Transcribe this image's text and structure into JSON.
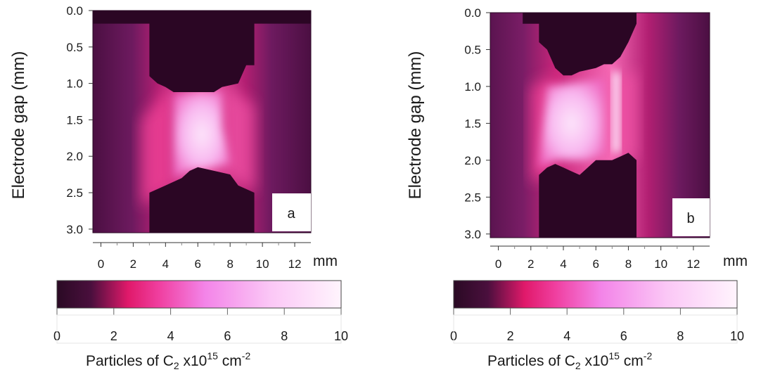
{
  "chart_data": [
    {
      "type": "heatmap",
      "panel_label": "a",
      "ylabel": "Electrode gap (mm)",
      "x_unit": "mm",
      "x_ticks": [
        0,
        2,
        4,
        6,
        8,
        10,
        12
      ],
      "y_ticks": [
        "0.0",
        "0.5",
        "1.0",
        "1.5",
        "2.0",
        "2.5",
        "3.0"
      ],
      "xlim": [
        -0.5,
        13.0
      ],
      "ylim": [
        0.0,
        3.05
      ],
      "colorbar": {
        "title": "Particles of C2 x10^15 cm^-2",
        "title_parts": {
          "main": "Particles of C",
          "sub": "2",
          "mid": " x10",
          "sup1": "15",
          "unit": " cm",
          "sup2": "-2"
        },
        "ticks": [
          0,
          2,
          4,
          6,
          8,
          10
        ],
        "range": [
          0,
          10
        ]
      },
      "regions": {
        "top_electrode": [
          [
            -0.5,
            0.0
          ],
          [
            13.0,
            0.0
          ],
          [
            13.0,
            0.18
          ],
          [
            9.5,
            0.18
          ],
          [
            9.5,
            0.75
          ],
          [
            9.0,
            0.75
          ],
          [
            8.5,
            1.0
          ],
          [
            7.5,
            1.05
          ],
          [
            7.0,
            1.12
          ],
          [
            4.5,
            1.12
          ],
          [
            4.0,
            1.05
          ],
          [
            3.5,
            1.0
          ],
          [
            3.0,
            0.9
          ],
          [
            3.0,
            0.18
          ],
          [
            -0.5,
            0.18
          ]
        ],
        "bottom_electrode": [
          [
            3.0,
            3.05
          ],
          [
            3.0,
            2.5
          ],
          [
            4.0,
            2.4
          ],
          [
            5.0,
            2.3
          ],
          [
            5.5,
            2.2
          ],
          [
            6.0,
            2.15
          ],
          [
            7.0,
            2.2
          ],
          [
            8.0,
            2.25
          ],
          [
            8.5,
            2.4
          ],
          [
            9.5,
            2.5
          ],
          [
            9.5,
            3.05
          ]
        ],
        "plasma_core": [
          [
            4.5,
            1.15
          ],
          [
            7.5,
            1.1
          ],
          [
            7.5,
            1.6
          ],
          [
            8.0,
            2.1
          ],
          [
            7.0,
            2.15
          ],
          [
            5.5,
            2.2
          ],
          [
            4.5,
            2.3
          ],
          [
            4.5,
            1.7
          ]
        ],
        "left_glow": [
          [
            2.5,
            1.5
          ],
          [
            4.5,
            1.0
          ],
          [
            4.5,
            2.4
          ],
          [
            2.5,
            2.7
          ]
        ],
        "right_glow": [
          [
            7.5,
            1.0
          ],
          [
            9.5,
            1.3
          ],
          [
            9.5,
            2.5
          ],
          [
            7.5,
            2.2
          ]
        ]
      }
    },
    {
      "type": "heatmap",
      "panel_label": "b",
      "ylabel": "Electrode gap (mm)",
      "x_unit": "mm",
      "x_ticks": [
        0,
        2,
        4,
        6,
        8,
        10,
        12
      ],
      "y_ticks": [
        "0.0",
        "0.5",
        "1.0",
        "1.5",
        "2.0",
        "2.5",
        "3.0"
      ],
      "xlim": [
        -0.5,
        13.0
      ],
      "ylim": [
        0.0,
        3.05
      ],
      "colorbar": {
        "title": "Particles of C2 x10^15 cm^-2",
        "title_parts": {
          "main": "Particles of C",
          "sub": "2",
          "mid": " x10",
          "sup1": "15",
          "unit": " cm",
          "sup2": "-2"
        },
        "ticks": [
          0,
          2,
          4,
          6,
          8,
          10
        ],
        "range": [
          0,
          10
        ]
      },
      "regions": {
        "top_electrode": [
          [
            1.5,
            0.0
          ],
          [
            8.5,
            0.0
          ],
          [
            8.5,
            0.15
          ],
          [
            8.0,
            0.4
          ],
          [
            7.5,
            0.6
          ],
          [
            7.0,
            0.7
          ],
          [
            6.5,
            0.7
          ],
          [
            6.0,
            0.75
          ],
          [
            5.0,
            0.8
          ],
          [
            4.5,
            0.85
          ],
          [
            4.0,
            0.85
          ],
          [
            3.5,
            0.75
          ],
          [
            3.0,
            0.5
          ],
          [
            2.5,
            0.4
          ],
          [
            2.5,
            0.15
          ],
          [
            1.5,
            0.15
          ]
        ],
        "bottom_electrode": [
          [
            2.5,
            3.05
          ],
          [
            2.5,
            2.2
          ],
          [
            3.0,
            2.1
          ],
          [
            3.5,
            2.05
          ],
          [
            4.0,
            2.1
          ],
          [
            4.5,
            2.15
          ],
          [
            5.0,
            2.2
          ],
          [
            5.5,
            2.1
          ],
          [
            6.0,
            2.0
          ],
          [
            7.0,
            2.0
          ],
          [
            7.5,
            1.95
          ],
          [
            8.0,
            1.9
          ],
          [
            8.5,
            2.0
          ],
          [
            8.5,
            3.05
          ]
        ],
        "plasma_core": [
          [
            3.0,
            1.0
          ],
          [
            6.5,
            0.9
          ],
          [
            6.5,
            1.9
          ],
          [
            5.5,
            2.0
          ],
          [
            3.5,
            2.0
          ],
          [
            2.5,
            2.1
          ]
        ],
        "left_glow": [
          [
            2.0,
            1.0
          ],
          [
            3.5,
            0.85
          ],
          [
            3.5,
            2.2
          ],
          [
            2.0,
            2.3
          ]
        ],
        "right_glow": [
          [
            7.0,
            0.85
          ],
          [
            8.5,
            0.8
          ],
          [
            8.5,
            2.0
          ],
          [
            7.0,
            1.9
          ]
        ],
        "bright_streak": [
          [
            7.0,
            0.8
          ],
          [
            7.5,
            0.8
          ],
          [
            7.5,
            1.9
          ],
          [
            7.0,
            1.9
          ]
        ]
      }
    }
  ]
}
